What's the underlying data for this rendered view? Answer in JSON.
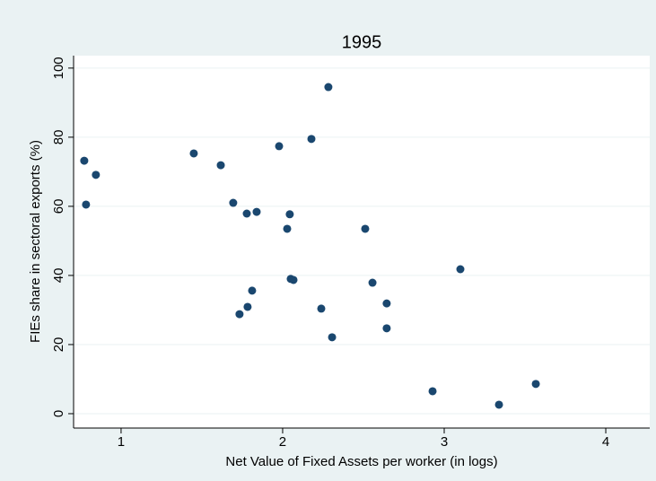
{
  "chart_data": {
    "type": "scatter",
    "title": "1995",
    "x_label": "Net Value of Fixed Assets per worker (in logs)",
    "y_label": "FIEs share in sectoral exports (%)",
    "x": [
      0.772,
      0.844,
      0.783,
      1.45,
      1.617,
      1.694,
      1.778,
      1.839,
      1.978,
      2.178,
      2.283,
      2.044,
      2.028,
      2.511,
      2.05,
      2.067,
      1.811,
      1.733,
      1.783,
      2.239,
      2.306,
      2.556,
      2.644,
      2.644,
      3.1,
      2.928,
      3.339,
      3.567
    ],
    "series": [
      {
        "name": "FIEs share",
        "color": "#1a476f",
        "values": [
          73.2,
          69.1,
          60.5,
          75.3,
          71.9,
          61.0,
          57.9,
          58.4,
          77.4,
          79.5,
          94.5,
          57.7,
          53.5,
          53.5,
          39.0,
          38.7,
          35.6,
          28.8,
          30.9,
          30.4,
          22.1,
          37.9,
          31.9,
          24.7,
          41.8,
          6.5,
          2.6,
          8.6
        ]
      }
    ],
    "xlim": [
      0.706,
      4.272
    ],
    "xticks": [
      1,
      2,
      3,
      4
    ],
    "ylim": [
      -4.16,
      103.6
    ],
    "yticks": [
      0,
      20,
      40,
      60,
      80,
      100
    ],
    "grid": true
  }
}
